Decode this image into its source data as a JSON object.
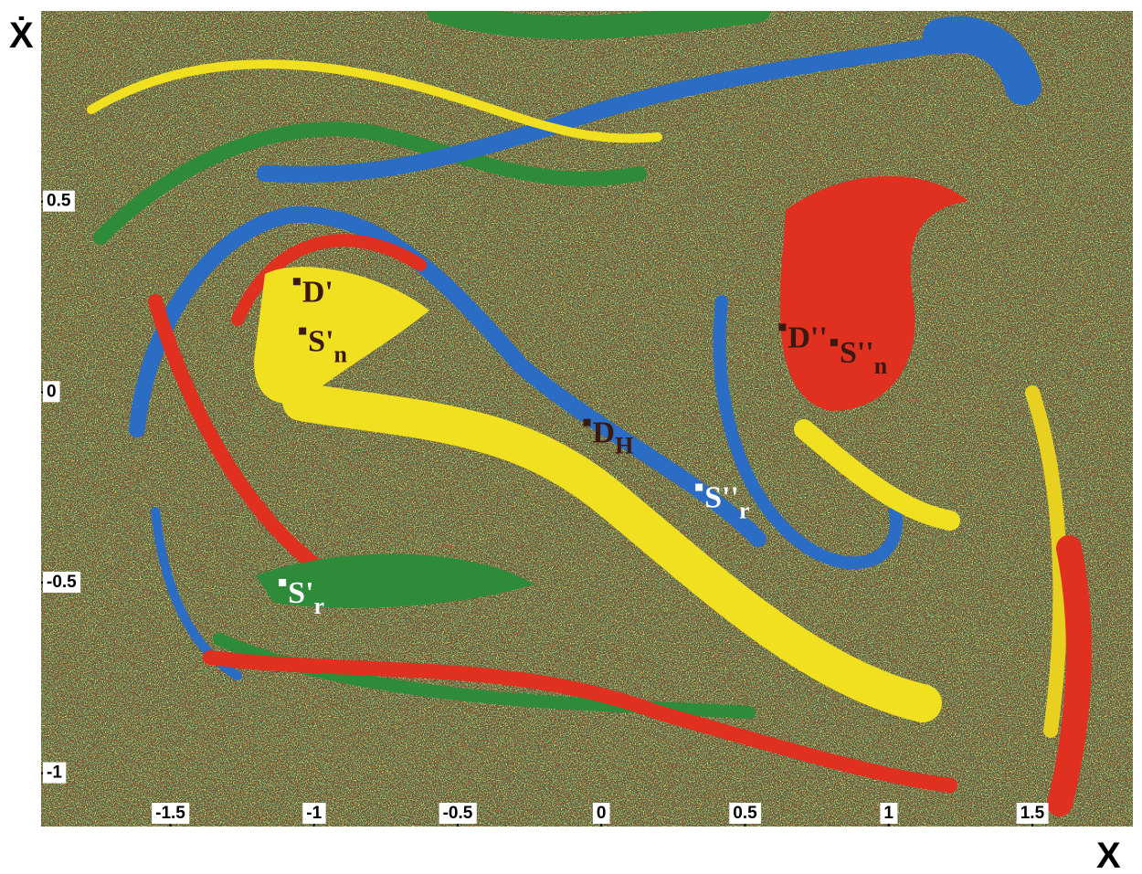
{
  "chart_data": {
    "type": "basin",
    "x_label": "X",
    "y_label": "Ẋ",
    "xlim": [
      -1.95,
      1.85
    ],
    "ylim": [
      -1.14,
      1.0
    ],
    "xticks": [
      -1.5,
      -1,
      -0.5,
      0,
      0.5,
      1,
      1.5
    ],
    "yticks": [
      0.5,
      0,
      -0.5,
      -1
    ],
    "points": [
      {
        "label": "D'",
        "sub": "",
        "x": -1.06,
        "y": 0.29,
        "color": "#3a1a10"
      },
      {
        "label": "S'",
        "sub": "n",
        "x": -1.04,
        "y": 0.16,
        "color": "#3a1a10"
      },
      {
        "label": "D''",
        "sub": "",
        "x": 0.63,
        "y": 0.17,
        "color": "#3a1a10"
      },
      {
        "label": "S''",
        "sub": "n",
        "x": 0.81,
        "y": 0.13,
        "color": "#3a1a10"
      },
      {
        "label": "D",
        "sub": "H",
        "x": -0.05,
        "y": -0.08,
        "color": "#3a1a10"
      },
      {
        "label": "S''",
        "sub": "r",
        "x": 0.34,
        "y": -0.25,
        "color": "#ffffff"
      },
      {
        "label": "S'",
        "sub": "r",
        "x": -1.11,
        "y": -0.5,
        "color": "#ffffff"
      }
    ]
  }
}
